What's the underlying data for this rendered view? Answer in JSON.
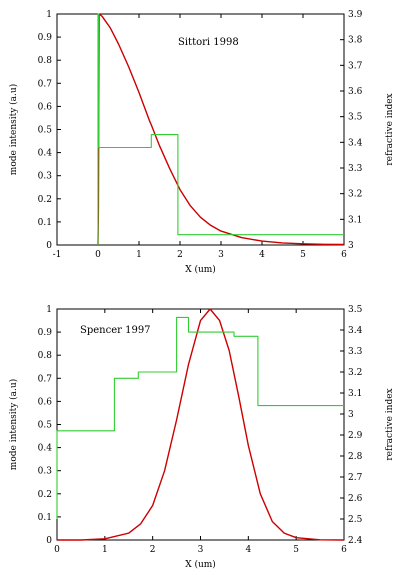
{
  "chart_data": [
    {
      "type": "line",
      "annotation": "Sittori 1998",
      "xlabel": "X (um)",
      "ylabel": "mode intensity (a.u)",
      "ylabel_right": "refractive index",
      "xlim": [
        -1,
        6
      ],
      "ylim": [
        0,
        1
      ],
      "ylim_right": [
        3,
        3.9
      ],
      "xticks": [
        "-1",
        "0",
        "1",
        "2",
        "3",
        "4",
        "5",
        "6"
      ],
      "yticks": [
        "0",
        "0.1",
        "0.2",
        "0.3",
        "0.4",
        "0.5",
        "0.6",
        "0.7",
        "0.8",
        "0.9",
        "1"
      ],
      "yticks_right": [
        "3",
        "3.1",
        "3.2",
        "3.3",
        "3.4",
        "3.5",
        "3.6",
        "3.7",
        "3.8",
        "3.9"
      ],
      "grid": false,
      "series": [
        {
          "color": "#cc0000",
          "axis": "left",
          "x": [
            0,
            0.01,
            0.02,
            0.03,
            0.05,
            0.1,
            0.3,
            0.5,
            0.75,
            1.0,
            1.25,
            1.3,
            1.5,
            1.75,
            2.0,
            2.25,
            2.5,
            2.75,
            3.0,
            3.5,
            4.0,
            4.5,
            5.0,
            5.5,
            6.0
          ],
          "y": [
            0,
            0.15,
            0.6,
            1.0,
            0.997,
            0.99,
            0.94,
            0.87,
            0.77,
            0.66,
            0.54,
            0.52,
            0.43,
            0.33,
            0.24,
            0.17,
            0.12,
            0.085,
            0.06,
            0.032,
            0.017,
            0.009,
            0.005,
            0.003,
            0.002
          ]
        },
        {
          "color": "#33cc33",
          "axis": "right",
          "x": [
            0,
            0,
            0.02,
            0.02,
            1.3,
            1.3,
            1.95,
            1.95,
            6.0
          ],
          "y": [
            3.0,
            3.9,
            3.9,
            3.38,
            3.38,
            3.43,
            3.43,
            3.04,
            3.04
          ]
        }
      ]
    },
    {
      "type": "line",
      "annotation": "Spencer 1997",
      "xlabel": "X (um)",
      "ylabel": "mode intensity (a.u)",
      "ylabel_right": "refractive index",
      "xlim": [
        0,
        6
      ],
      "ylim": [
        0,
        1
      ],
      "ylim_right": [
        2.4,
        3.5
      ],
      "xticks": [
        "0",
        "1",
        "2",
        "3",
        "4",
        "5",
        "6"
      ],
      "yticks": [
        "0",
        "0.1",
        "0.2",
        "0.3",
        "0.4",
        "0.5",
        "0.6",
        "0.7",
        "0.8",
        "0.9",
        "1"
      ],
      "yticks_right": [
        "2.4",
        "2.5",
        "2.6",
        "2.7",
        "2.8",
        "2.9",
        "3",
        "3.1",
        "3.2",
        "3.3",
        "3.4",
        "3.5"
      ],
      "grid": false,
      "series": [
        {
          "color": "#cc0000",
          "axis": "left",
          "x": [
            0,
            0.5,
            1.0,
            1.5,
            1.75,
            2.0,
            2.25,
            2.5,
            2.75,
            3.0,
            3.2,
            3.4,
            3.6,
            3.8,
            4.0,
            4.25,
            4.5,
            4.75,
            5.0,
            5.5,
            6.0
          ],
          "y": [
            0,
            0.0,
            0.005,
            0.03,
            0.07,
            0.15,
            0.3,
            0.52,
            0.76,
            0.95,
            1.0,
            0.95,
            0.82,
            0.62,
            0.41,
            0.2,
            0.08,
            0.03,
            0.01,
            0.001,
            0
          ]
        },
        {
          "color": "#33cc33",
          "axis": "right",
          "x": [
            0,
            0,
            1.2,
            1.2,
            1.7,
            1.7,
            2.5,
            2.5,
            2.75,
            2.75,
            3.7,
            3.7,
            4.2,
            4.2,
            6.0
          ],
          "y": [
            2.5,
            2.92,
            2.92,
            3.17,
            3.17,
            3.2,
            3.2,
            3.46,
            3.46,
            3.39,
            3.39,
            3.37,
            3.37,
            3.04,
            3.04
          ]
        }
      ]
    }
  ]
}
